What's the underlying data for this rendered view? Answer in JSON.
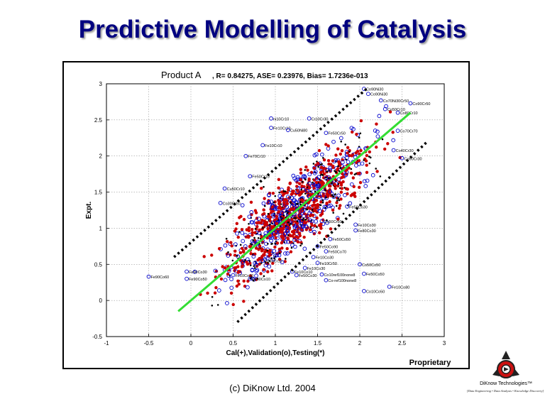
{
  "slide": {
    "title": "Predictive Modelling of Catalysis",
    "footer": "(c) DiKnow Ltd. 2004",
    "logo_brand": "DiKnow Technologies™",
    "logo_tagline": "[Data Engineering • Data Analysis • Knowledge Discovery]"
  },
  "chart_data": {
    "type": "scatter",
    "product_label": "Product A",
    "title": ", R= 0.84275, ASE= 0.23976, Bias= 1.7236e-013",
    "xlabel": "Cal(+),Validation(o),Testing(*)",
    "ylabel": "Expt.",
    "corner_label": "Proprietary",
    "xlim": [
      -1,
      3
    ],
    "ylim": [
      -0.5,
      3
    ],
    "xticks": [
      "-1",
      "-0.5",
      "0",
      "0.5",
      "1",
      "1.5",
      "2",
      "2.5",
      "3"
    ],
    "yticks": [
      "-0.5",
      "0",
      "0.5",
      "1",
      "1.5",
      "2",
      "2.5",
      "3"
    ],
    "grid": true,
    "fit_line": {
      "x": [
        -0.15,
        2.6
      ],
      "y": [
        -0.15,
        2.6
      ],
      "color": "#33dd33"
    },
    "upper_bound": {
      "x": [
        -0.2,
        2.1
      ],
      "y": [
        0.6,
        2.95
      ],
      "color": "#000000"
    },
    "lower_bound": {
      "x": [
        0.55,
        2.8
      ],
      "y": [
        -0.3,
        2.2
      ],
      "color": "#000000"
    },
    "colors": {
      "calibration": "#cc0000",
      "validation": "#0000cc",
      "testing": "#000000"
    },
    "point_labels": [
      {
        "text": "Co90Ni30",
        "x": 2.05,
        "y": 2.93
      },
      {
        "text": "Co90Ni30",
        "x": 2.1,
        "y": 2.86
      },
      {
        "text": "Co70Ni30Cr50",
        "x": 2.25,
        "y": 2.77
      },
      {
        "text": "Co90Cr50",
        "x": 2.6,
        "y": 2.73
      },
      {
        "text": "Co50Cr10",
        "x": 2.3,
        "y": 2.65
      },
      {
        "text": "Co80Cr10",
        "x": 2.45,
        "y": 2.6
      },
      {
        "text": "ni10Cr10",
        "x": 0.95,
        "y": 2.52
      },
      {
        "text": "Cr10Cr30",
        "x": 1.4,
        "y": 2.52
      },
      {
        "text": "Fe10Cr10",
        "x": 0.95,
        "y": 2.39
      },
      {
        "text": "Cu50Ni80",
        "x": 1.15,
        "y": 2.36
      },
      {
        "text": "Fe50Cr50",
        "x": 1.6,
        "y": 2.32
      },
      {
        "text": "Co70Cr70",
        "x": 2.45,
        "y": 2.35
      },
      {
        "text": "Fe10Cr10",
        "x": 0.85,
        "y": 2.15
      },
      {
        "text": "Co40Cr30",
        "x": 2.4,
        "y": 2.08
      },
      {
        "text": "Fe70Cr10",
        "x": 0.65,
        "y": 2.0
      },
      {
        "text": "Co60Cr30",
        "x": 2.5,
        "y": 1.97
      },
      {
        "text": "Fe50Cr10",
        "x": 0.7,
        "y": 1.72
      },
      {
        "text": "Cu50Cr10",
        "x": 0.4,
        "y": 1.55
      },
      {
        "text": "Co30Cr50",
        "x": 0.35,
        "y": 1.35
      },
      {
        "text": "Fe50Co30",
        "x": 1.85,
        "y": 1.3
      },
      {
        "text": "Fe10Co30",
        "x": 1.95,
        "y": 1.05
      },
      {
        "text": "Fe80Co30",
        "x": 1.95,
        "y": 0.97
      },
      {
        "text": "Fe50Co50",
        "x": 1.65,
        "y": 0.85
      },
      {
        "text": "Fe10Co30",
        "x": 1.45,
        "y": 0.6
      },
      {
        "text": "Fe10Cr50",
        "x": 1.5,
        "y": 0.52
      },
      {
        "text": "Co50Co50",
        "x": 2.0,
        "y": 0.5
      },
      {
        "text": "Fe10Co30",
        "x": 1.35,
        "y": 0.45
      },
      {
        "text": "Fe10Co10",
        "x": 1.2,
        "y": 0.4
      },
      {
        "text": "Fe50Co30",
        "x": 1.25,
        "y": 0.35
      },
      {
        "text": "Fe50Co50",
        "x": 2.05,
        "y": 0.37
      },
      {
        "text": "Co10ref100none8",
        "x": 1.55,
        "y": 0.36
      },
      {
        "text": "Co-ref100none8",
        "x": 1.6,
        "y": 0.28
      },
      {
        "text": "Fe90Co60",
        "x": -0.5,
        "y": 0.33
      },
      {
        "text": "Fe90Co30",
        "x": -0.05,
        "y": 0.4
      },
      {
        "text": "Fe90Co50",
        "x": -0.05,
        "y": 0.3
      },
      {
        "text": "Fe10Co80",
        "x": 2.35,
        "y": 0.19
      },
      {
        "text": "Co10Co50",
        "x": 2.05,
        "y": 0.13
      },
      {
        "text": "Fe10Co30",
        "x": 0.5,
        "y": 0.35
      },
      {
        "text": "Fe50Co10",
        "x": 0.7,
        "y": 0.3
      },
      {
        "text": "Fe50Cr10",
        "x": 0.85,
        "y": 0.55
      },
      {
        "text": "Co50Cr50",
        "x": 1.55,
        "y": 1.1
      },
      {
        "text": "Fe50Co90",
        "x": 1.5,
        "y": 0.75
      },
      {
        "text": "Fe50Co70",
        "x": 1.6,
        "y": 0.68
      }
    ]
  }
}
